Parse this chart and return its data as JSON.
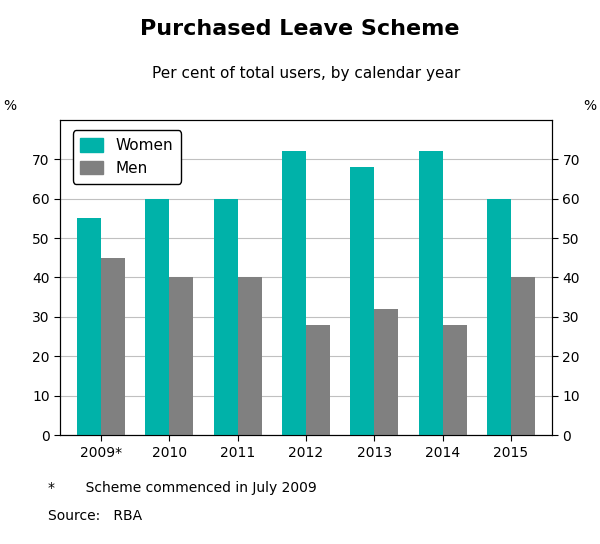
{
  "title": "Purchased Leave Scheme",
  "subtitle": "Per cent of total users, by calendar year",
  "categories": [
    "2009*",
    "2010",
    "2011",
    "2012",
    "2013",
    "2014",
    "2015"
  ],
  "women_values": [
    55,
    60,
    60,
    72,
    68,
    72,
    60
  ],
  "men_values": [
    45,
    40,
    40,
    28,
    32,
    28,
    40
  ],
  "women_color": "#00B2A9",
  "men_color": "#808080",
  "ylabel_left": "%",
  "ylabel_right": "%",
  "ylim": [
    0,
    80
  ],
  "yticks": [
    0,
    10,
    20,
    30,
    40,
    50,
    60,
    70
  ],
  "bar_width": 0.35,
  "footnote1": "*       Scheme commenced in July 2009",
  "footnote2": "Source:   RBA",
  "legend_labels": [
    "Women",
    "Men"
  ],
  "title_fontsize": 16,
  "subtitle_fontsize": 11,
  "tick_fontsize": 10,
  "legend_fontsize": 11,
  "footnote_fontsize": 10,
  "background_color": "#ffffff",
  "grid_color": "#c0c0c0"
}
